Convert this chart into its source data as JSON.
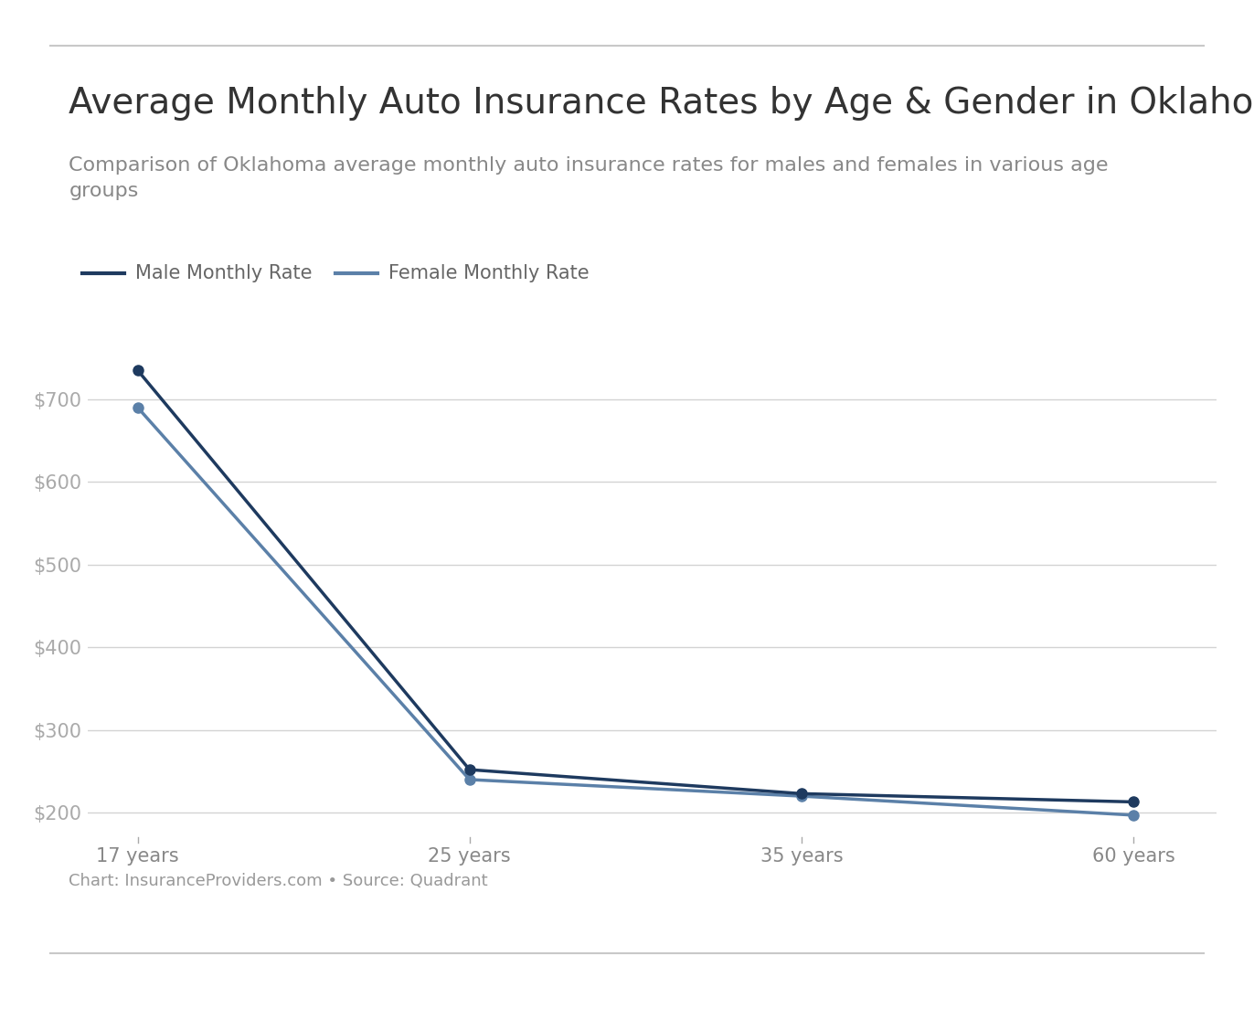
{
  "title": "Average Monthly Auto Insurance Rates by Age & Gender in Oklahoma.",
  "subtitle": "Comparison of Oklahoma average monthly auto insurance rates for males and females in various age\ngroups",
  "caption": "Chart: InsuranceProviders.com • Source: Quadrant",
  "ages": [
    "17 years",
    "25 years",
    "35 years",
    "60 years"
  ],
  "x_positions": [
    0,
    1,
    2,
    3
  ],
  "male_values": [
    735,
    252,
    223,
    213
  ],
  "female_values": [
    690,
    240,
    220,
    197
  ],
  "male_color": "#1e3a5f",
  "female_color": "#5b80a8",
  "male_label": "Male Monthly Rate",
  "female_label": "Female Monthly Rate",
  "yticks": [
    200,
    300,
    400,
    500,
    600,
    700
  ],
  "ylim": [
    170,
    780
  ],
  "background_color": "#ffffff",
  "grid_color": "#d3d3d3",
  "title_fontsize": 28,
  "subtitle_fontsize": 16,
  "caption_fontsize": 13,
  "tick_fontsize": 15,
  "legend_fontsize": 15,
  "border_color": "#c8c8c8"
}
